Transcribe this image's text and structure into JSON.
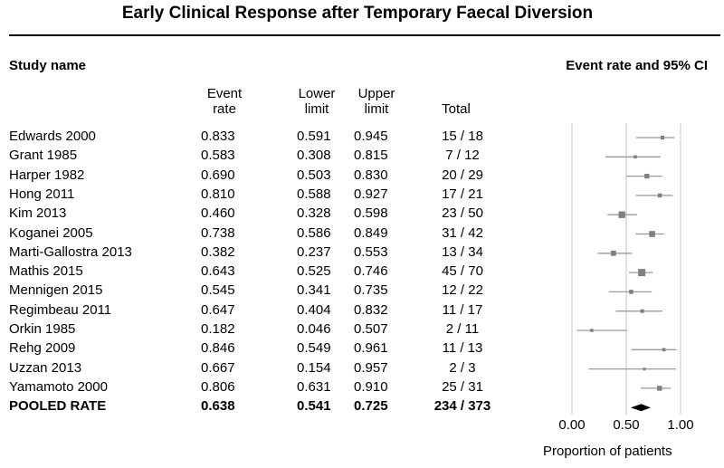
{
  "chart_data": {
    "type": "forest",
    "title": "Early Clinical Response after Temporary Faecal Diversion",
    "columns": {
      "study": "Study name",
      "rate": [
        "Event",
        "rate"
      ],
      "lower": [
        "Lower",
        "limit"
      ],
      "upper": [
        "Upper",
        "limit"
      ],
      "total": "Total"
    },
    "ci_header": "Event rate and 95% CI",
    "studies": [
      {
        "name": "Edwards 2000",
        "rate": "0.833",
        "lower": "0.591",
        "upper": "0.945",
        "total": "15 / 18"
      },
      {
        "name": "Grant 1985",
        "rate": "0.583",
        "lower": "0.308",
        "upper": "0.815",
        "total": "7 / 12"
      },
      {
        "name": "Harper 1982",
        "rate": "0.690",
        "lower": "0.503",
        "upper": "0.830",
        "total": "20 / 29"
      },
      {
        "name": "Hong 2011",
        "rate": "0.810",
        "lower": "0.588",
        "upper": "0.927",
        "total": "17 / 21"
      },
      {
        "name": "Kim 2013",
        "rate": "0.460",
        "lower": "0.328",
        "upper": "0.598",
        "total": "23 / 50"
      },
      {
        "name": "Koganei 2005",
        "rate": "0.738",
        "lower": "0.586",
        "upper": "0.849",
        "total": "31 / 42"
      },
      {
        "name": "Marti-Gallostra 2013",
        "rate": "0.382",
        "lower": "0.237",
        "upper": "0.553",
        "total": "13 / 34"
      },
      {
        "name": "Mathis 2015",
        "rate": "0.643",
        "lower": "0.525",
        "upper": "0.746",
        "total": "45 / 70"
      },
      {
        "name": "Mennigen 2015",
        "rate": "0.545",
        "lower": "0.341",
        "upper": "0.735",
        "total": "12 / 22"
      },
      {
        "name": "Regimbeau 2011",
        "rate": "0.647",
        "lower": "0.404",
        "upper": "0.832",
        "total": "11 / 17"
      },
      {
        "name": "Orkin 1985",
        "rate": "0.182",
        "lower": "0.046",
        "upper": "0.507",
        "total": "2 / 11"
      },
      {
        "name": "Rehg 2009",
        "rate": "0.846",
        "lower": "0.549",
        "upper": "0.961",
        "total": "11 / 13"
      },
      {
        "name": "Uzzan 2013",
        "rate": "0.667",
        "lower": "0.154",
        "upper": "0.957",
        "total": "2 / 3"
      },
      {
        "name": "Yamamoto 2000",
        "rate": "0.806",
        "lower": "0.631",
        "upper": "0.910",
        "total": "25 / 31"
      }
    ],
    "pooled": {
      "name": "POOLED RATE",
      "rate": "0.638",
      "lower": "0.541",
      "upper": "0.725",
      "total": "234 / 373"
    },
    "x_ticks": [
      "0.00",
      "0.50",
      "1.00"
    ],
    "xlim": [
      0,
      1
    ],
    "xlabel": "Proportion of patients",
    "colors": {
      "marker": "#808080",
      "ci_line": "#9a9a9a",
      "pooled": "#000000",
      "grid": "#d9d9d9"
    }
  }
}
